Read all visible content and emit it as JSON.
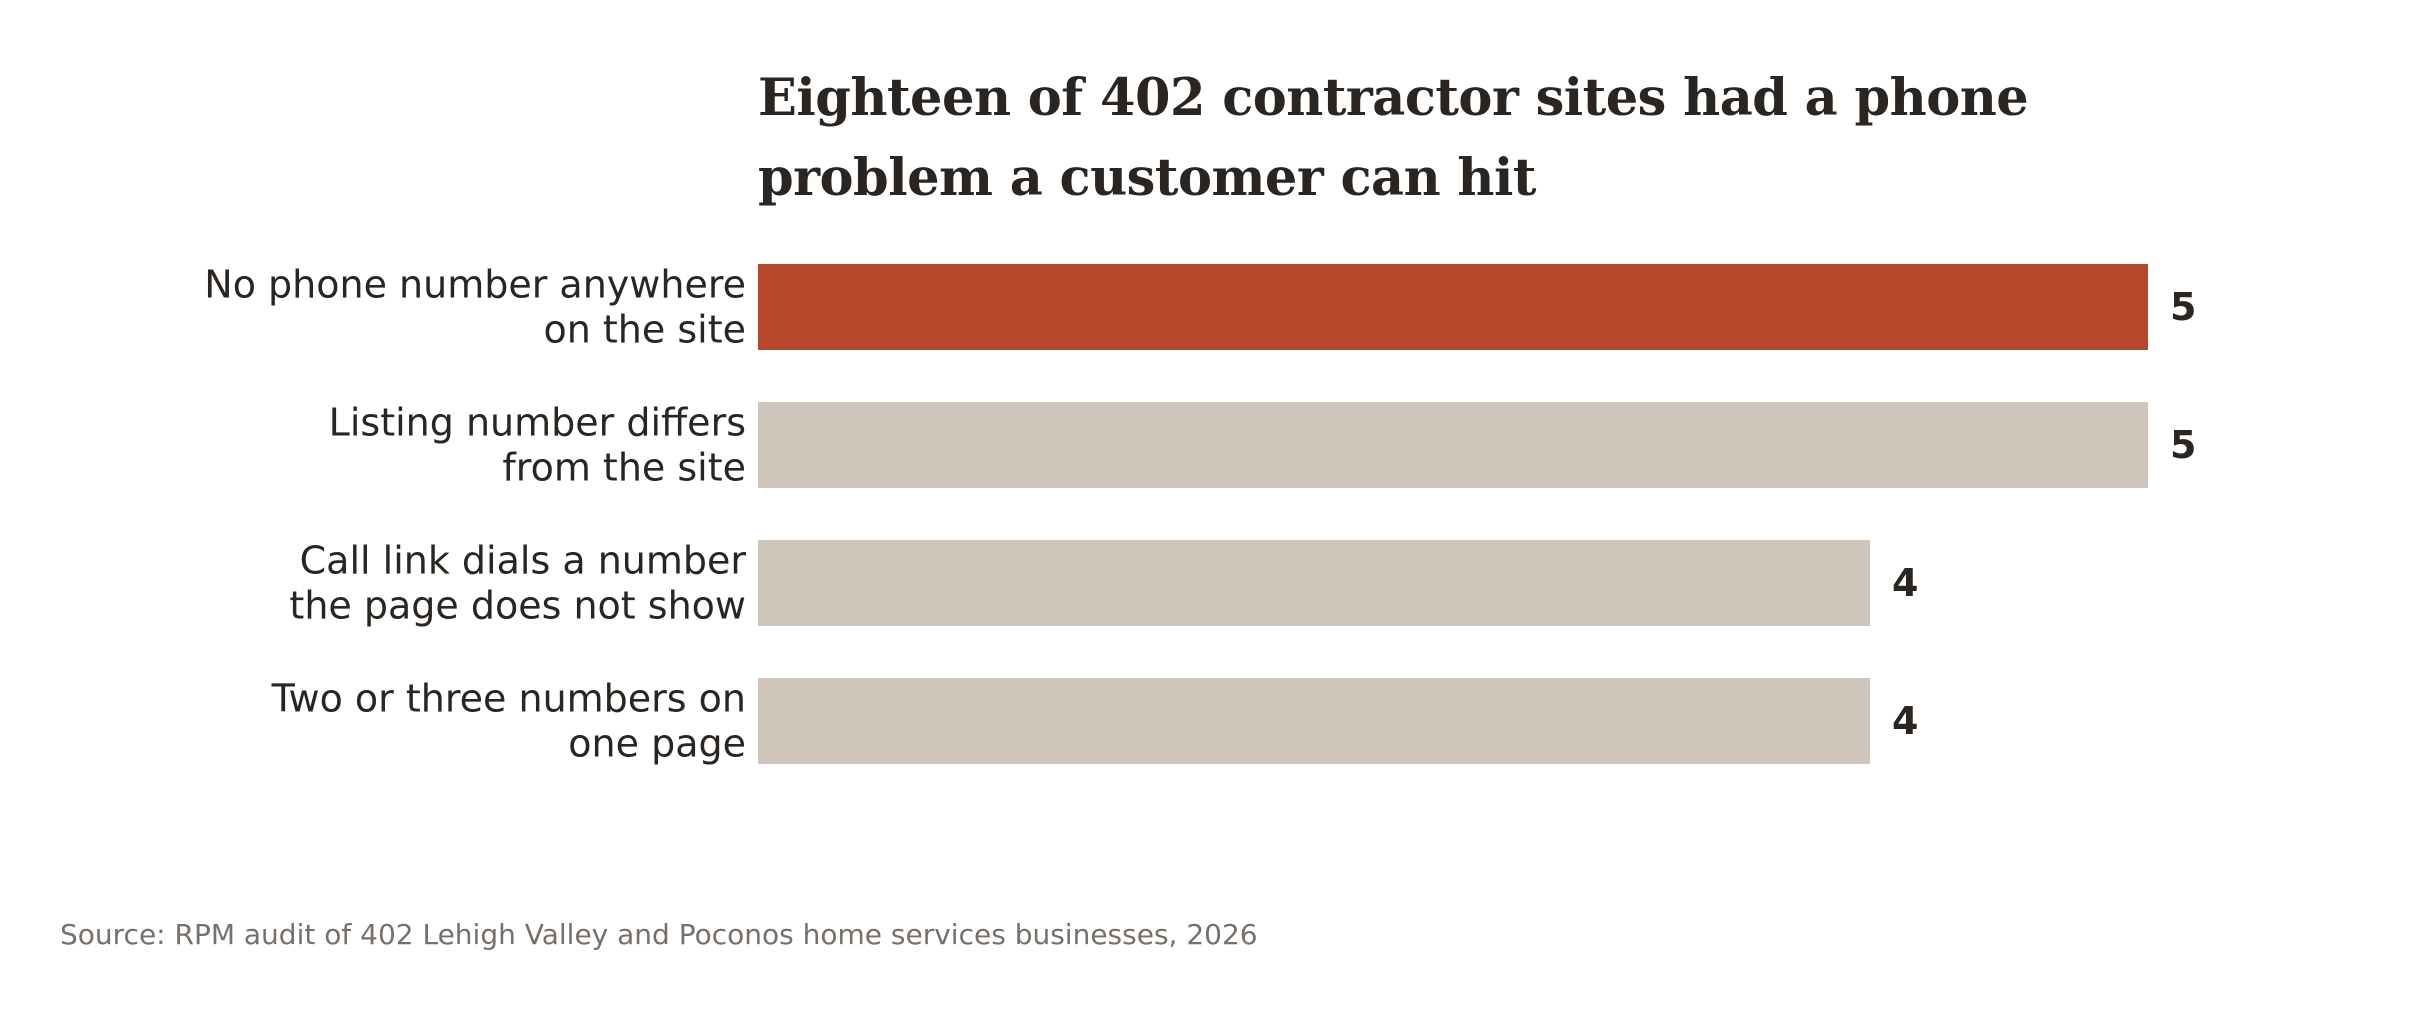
{
  "chart_data": {
    "type": "bar",
    "orientation": "horizontal",
    "title": "Eighteen of 402 contractor sites had a phone problem a customer can hit",
    "categories": [
      "No phone number anywhere on the site",
      "Listing number differs from the site",
      "Call link dials a number the page does not show",
      "Two or three numbers on one page"
    ],
    "category_lines": [
      [
        "No phone number anywhere",
        "on the site"
      ],
      [
        "Listing number differs",
        "from the site"
      ],
      [
        "Call link dials a number",
        "the page does not show"
      ],
      [
        "Two or three numbers on",
        "one page"
      ]
    ],
    "values": [
      5,
      5,
      4,
      4
    ],
    "value_labels": [
      "5",
      "5",
      "4",
      "4"
    ],
    "highlight_index": 0,
    "colors": {
      "highlight": "#b5472a",
      "base": "#cfc5ba",
      "text": "#2a2520",
      "source": "#77706a"
    },
    "xlim": [
      0,
      5
    ],
    "grid": false,
    "legend": "none",
    "xlabel": "",
    "ylabel": ""
  },
  "source": "Source: RPM audit of 402 Lehigh Valley and Poconos home services businesses, 2026"
}
